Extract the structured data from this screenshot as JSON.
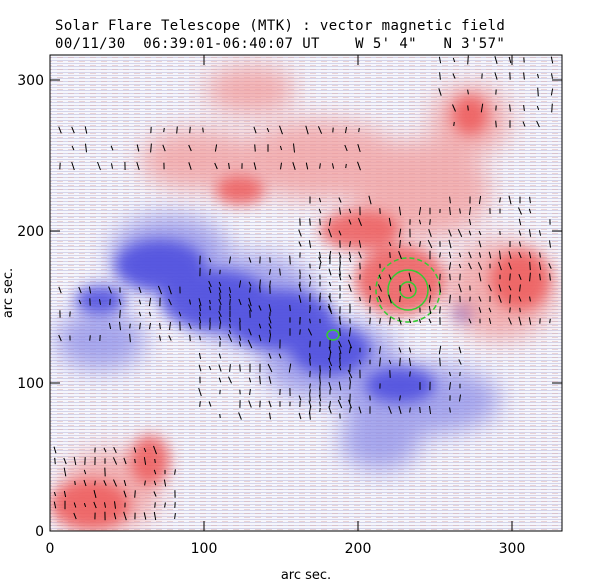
{
  "header": {
    "title": "Solar Flare Telescope (MTK) : vector magnetic field",
    "subtitle": "00/11/30  06:39:01-06:40:07 UT    W 5' 4\"   N 3'57\""
  },
  "axes": {
    "xlabel": "arc sec.",
    "ylabel": "arc sec.",
    "x_ticks": [
      "0",
      "100",
      "200",
      "300"
    ],
    "y_ticks": [
      "0",
      "100",
      "200",
      "300"
    ],
    "x_range": [
      0,
      340
    ],
    "y_range": [
      0,
      312
    ]
  },
  "colors": {
    "positive": "#f07070",
    "negative": "#5a5ae0",
    "contour": "#33cc33",
    "vector": "#000000"
  }
}
